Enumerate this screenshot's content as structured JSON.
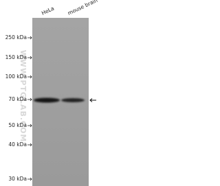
{
  "lanes": [
    "HeLa",
    "mouse brain"
  ],
  "markers": [
    "250 kDa",
    "150 kDa",
    "100 kDa",
    "70 kDa",
    "50 kDa",
    "40 kDa",
    "30 kDa"
  ],
  "watermark": "WWW.PTGLAB.COM"
}
